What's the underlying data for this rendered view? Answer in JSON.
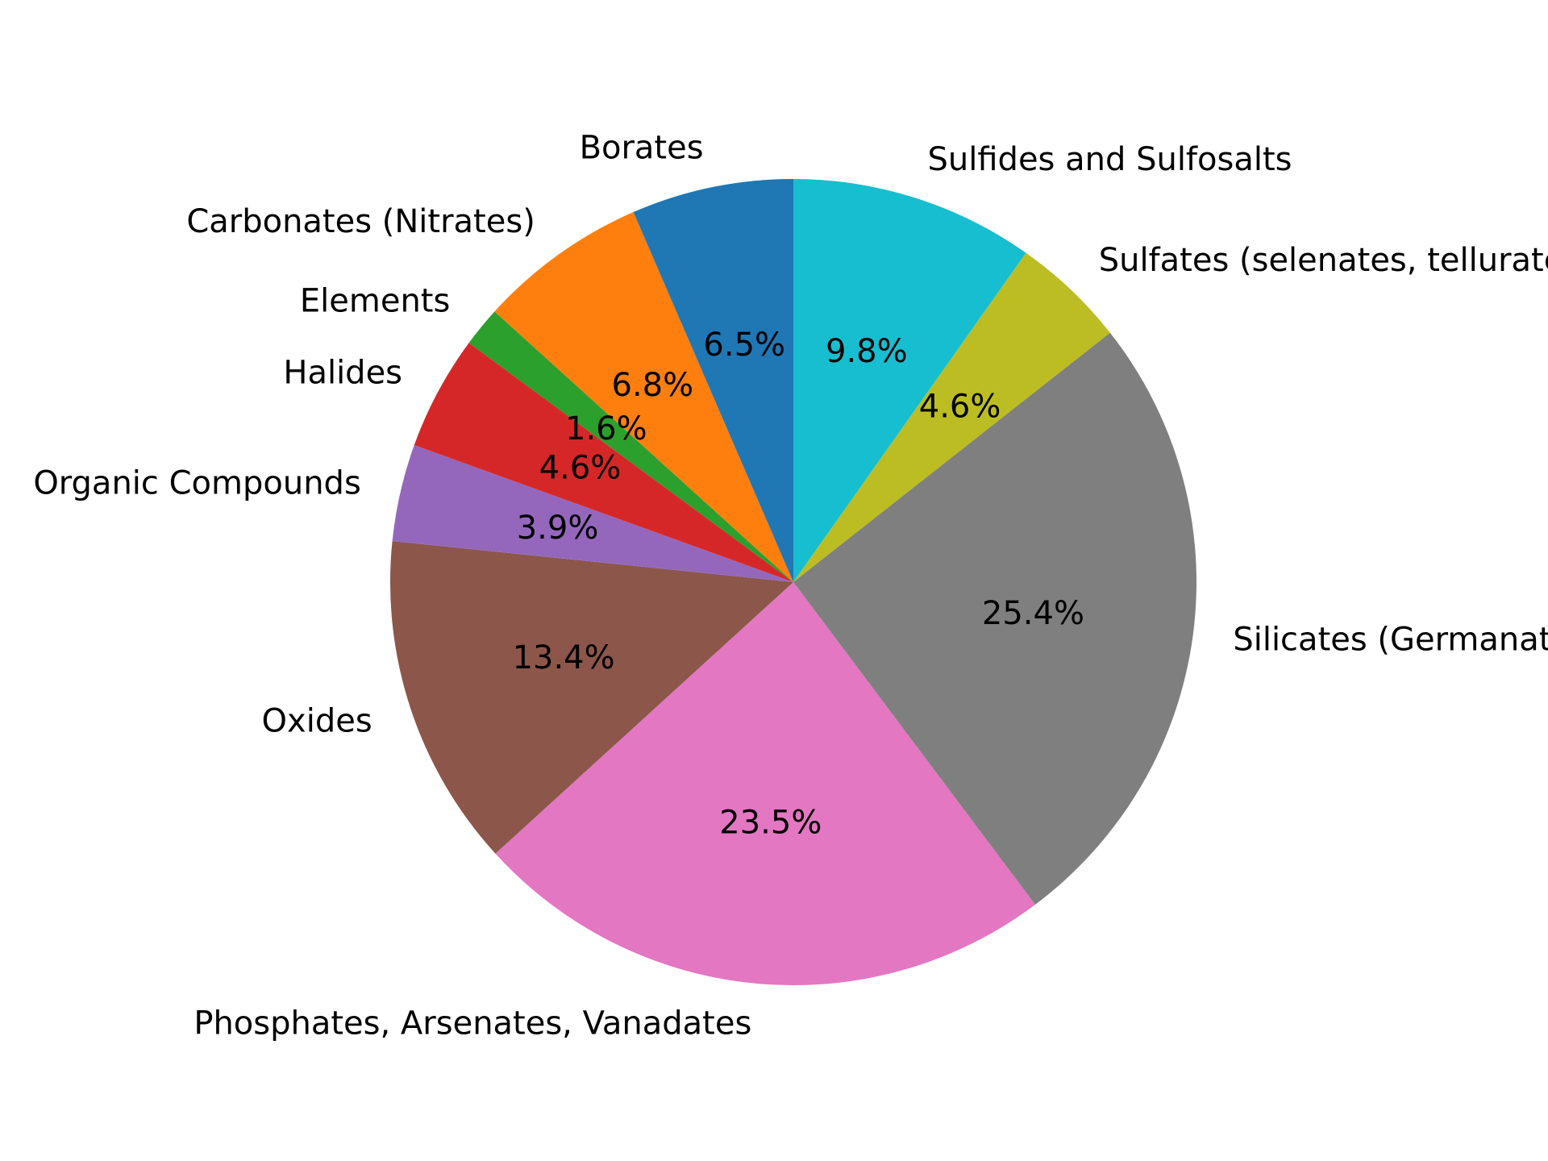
{
  "chart_data": {
    "type": "pie",
    "title": "",
    "start_angle_deg": 90,
    "direction": "clockwise",
    "slices": [
      {
        "label": "Sulfides and Sulfosalts",
        "value": 9.8,
        "pct_label": "9.8%",
        "color": "#17becf"
      },
      {
        "label": "Sulfates (selenates, tellurates, chromates, molybdates, wolframates)",
        "value": 4.6,
        "pct_label": "4.6%",
        "color": "#bcbd22"
      },
      {
        "label": "Silicates (Germanates)",
        "value": 25.4,
        "pct_label": "25.4%",
        "color": "#7f7f7f"
      },
      {
        "label": "Phosphates, Arsenates, Vanadates",
        "value": 23.5,
        "pct_label": "23.5%",
        "color": "#e377c2"
      },
      {
        "label": "Oxides",
        "value": 13.4,
        "pct_label": "13.4%",
        "color": "#8c564b"
      },
      {
        "label": "Organic Compounds",
        "value": 3.9,
        "pct_label": "3.9%",
        "color": "#9467bd"
      },
      {
        "label": "Halides",
        "value": 4.6,
        "pct_label": "4.6%",
        "color": "#d62728"
      },
      {
        "label": "Elements",
        "value": 1.6,
        "pct_label": "1.6%",
        "color": "#2ca02c"
      },
      {
        "label": "Carbonates (Nitrates)",
        "value": 6.8,
        "pct_label": "6.8%",
        "color": "#ff7f0e"
      },
      {
        "label": "Borates",
        "value": 6.5,
        "pct_label": "6.5%",
        "color": "#1f77b4"
      }
    ]
  }
}
